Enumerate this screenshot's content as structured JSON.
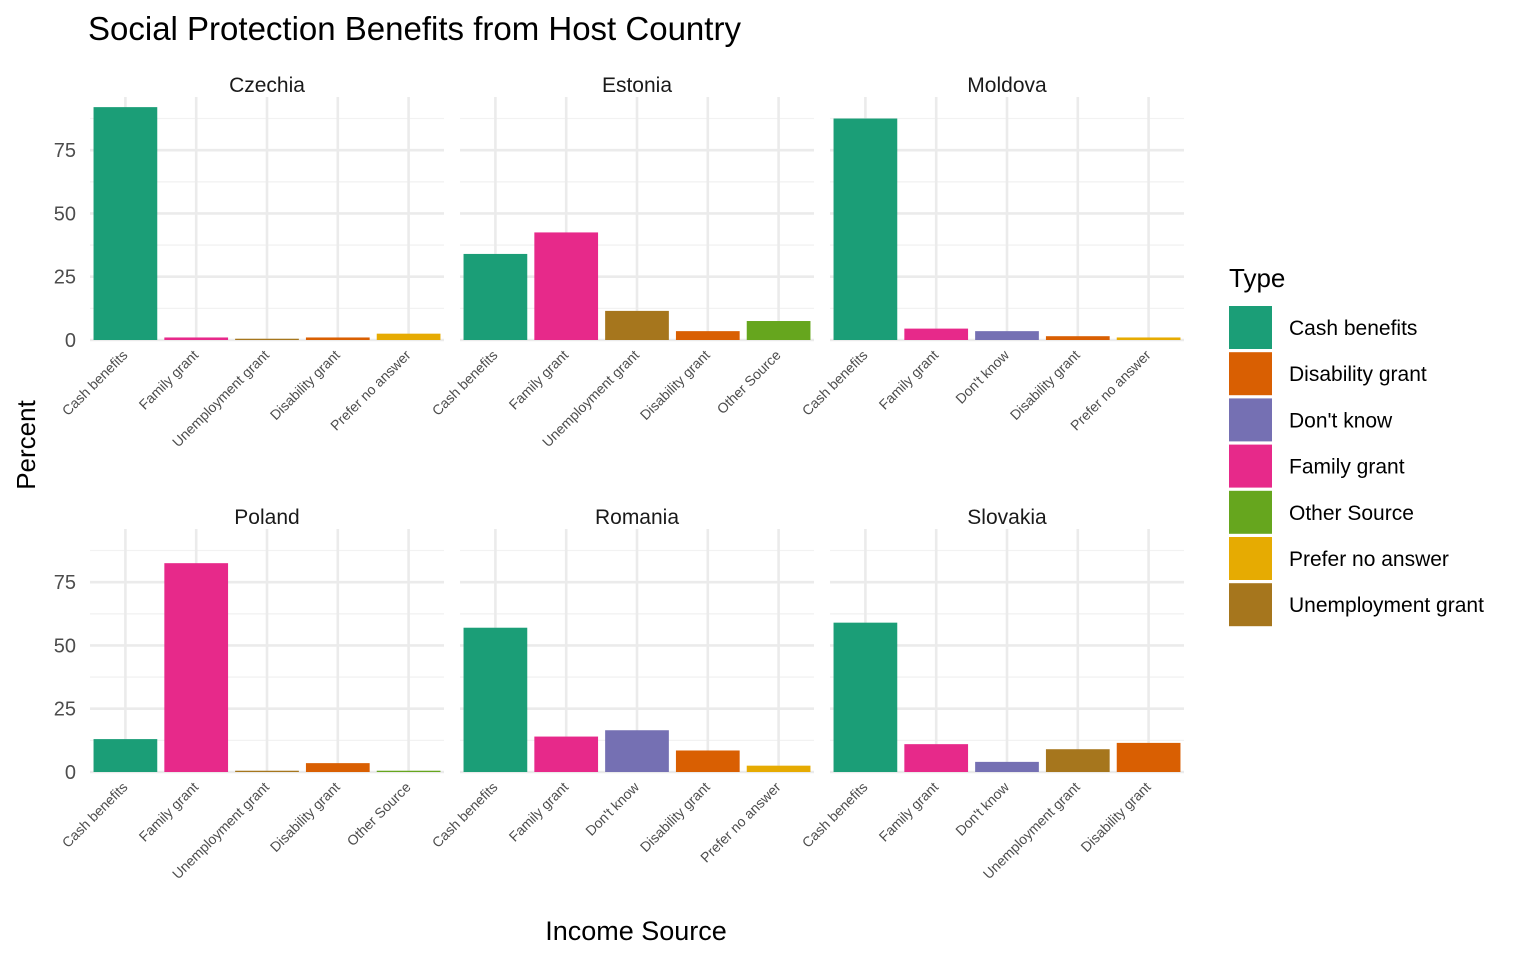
{
  "chart_data": {
    "type": "bar",
    "title": "Social Protection Benefits from Host Country",
    "xlabel": "Income Source",
    "ylabel": "Percent",
    "ylim": [
      0,
      96
    ],
    "yticks": [
      0,
      25,
      50,
      75
    ],
    "grid": true,
    "legend": {
      "title": "Type",
      "placement": "right",
      "entries": [
        {
          "name": "Cash benefits",
          "color": "#1b9e77"
        },
        {
          "name": "Disability grant",
          "color": "#d95f02"
        },
        {
          "name": "Don't know",
          "color": "#7570b3"
        },
        {
          "name": "Family grant",
          "color": "#e7298a"
        },
        {
          "name": "Other Source",
          "color": "#66a61e"
        },
        {
          "name": "Prefer no answer",
          "color": "#e6ab02"
        },
        {
          "name": "Unemployment grant",
          "color": "#a6761d"
        }
      ]
    },
    "panels": [
      {
        "name": "Czechia",
        "categories": [
          "Cash benefits",
          "Family grant",
          "Unemployment grant",
          "Disability grant",
          "Prefer no answer"
        ],
        "values": [
          92,
          1,
          0.5,
          1,
          2.5
        ]
      },
      {
        "name": "Estonia",
        "categories": [
          "Cash benefits",
          "Family grant",
          "Unemployment grant",
          "Disability grant",
          "Other Source"
        ],
        "values": [
          34,
          42.5,
          11.5,
          3.5,
          7.5
        ]
      },
      {
        "name": "Moldova",
        "categories": [
          "Cash benefits",
          "Family grant",
          "Don't know",
          "Disability grant",
          "Prefer no answer"
        ],
        "values": [
          87.5,
          4.5,
          3.5,
          1.5,
          1
        ]
      },
      {
        "name": "Poland",
        "categories": [
          "Cash benefits",
          "Family grant",
          "Unemployment grant",
          "Disability grant",
          "Other Source"
        ],
        "values": [
          13,
          82.5,
          0.5,
          3.5,
          0.5
        ]
      },
      {
        "name": "Romania",
        "categories": [
          "Cash benefits",
          "Family grant",
          "Don't know",
          "Disability grant",
          "Prefer no answer"
        ],
        "values": [
          57,
          14,
          16.5,
          8.5,
          2.5
        ]
      },
      {
        "name": "Slovakia",
        "categories": [
          "Cash benefits",
          "Family grant",
          "Don't know",
          "Unemployment grant",
          "Disability grant"
        ],
        "values": [
          59,
          11,
          4,
          9,
          11.5
        ]
      }
    ]
  }
}
